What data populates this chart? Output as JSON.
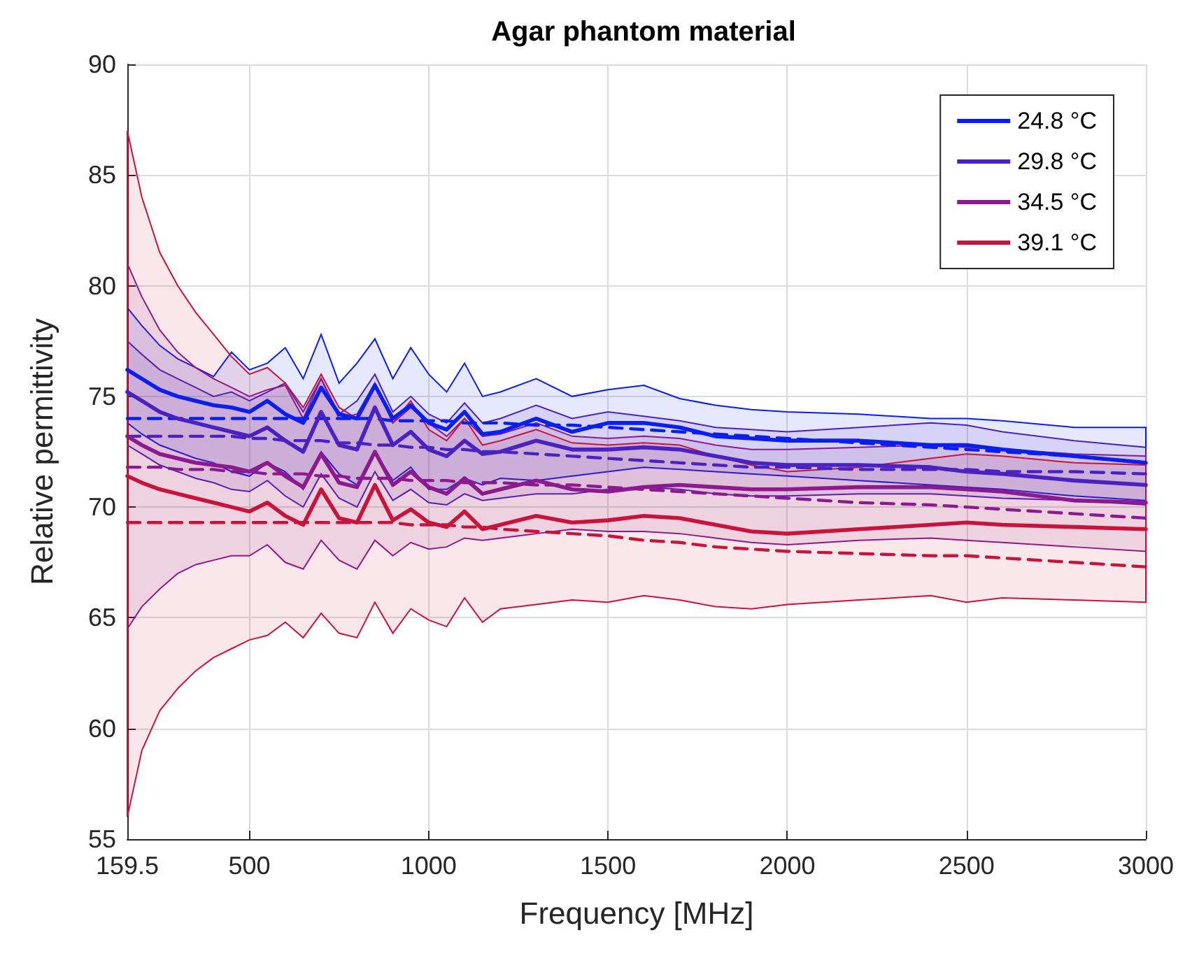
{
  "chart_data": {
    "type": "line",
    "title": "Agar phantom material",
    "xlabel": "Frequency [MHz]",
    "ylabel": "Relative permittivity",
    "x": [
      159.5,
      200,
      250,
      300,
      350,
      400,
      450,
      500,
      550,
      600,
      650,
      700,
      750,
      800,
      850,
      900,
      950,
      1000,
      1050,
      1100,
      1150,
      1200,
      1300,
      1400,
      1500,
      1600,
      1700,
      1800,
      1900,
      2000,
      2200,
      2400,
      2500,
      2600,
      2800,
      3000
    ],
    "xlim": [
      159.5,
      3000
    ],
    "xticks": [
      159.5,
      500,
      1000,
      1500,
      2000,
      2500,
      3000
    ],
    "ylim": [
      55,
      90
    ],
    "yticks": [
      55,
      60,
      65,
      70,
      75,
      80,
      85,
      90
    ],
    "grid": true,
    "legend": "top right",
    "line_style": "solid",
    "series": [
      {
        "name": "24.8 °C",
        "color": "#0a1eee",
        "values": [
          76.2,
          75.8,
          75.3,
          75,
          74.8,
          74.6,
          74.5,
          74.3,
          74.8,
          74.2,
          73.8,
          75.4,
          74.2,
          74,
          75.5,
          74,
          74.6,
          73.8,
          73.5,
          74.3,
          73.3,
          73.4,
          74,
          73.4,
          73.8,
          73.8,
          73.6,
          73.2,
          73.1,
          73,
          73,
          72.8,
          72.8,
          72.6,
          72.3,
          72
        ],
        "upper": [
          79,
          78.2,
          77.3,
          76.7,
          76.3,
          75.9,
          77,
          76.2,
          76.5,
          77.2,
          75.8,
          77.8,
          75.6,
          76.5,
          77.6,
          75.8,
          77.2,
          76,
          75.2,
          76.5,
          75,
          75.2,
          75.8,
          75,
          75.3,
          75.5,
          74.9,
          74.6,
          74.4,
          74.3,
          74.2,
          74,
          74,
          73.9,
          73.6,
          73.6
        ],
        "lower": [
          73.8,
          73.3,
          72.8,
          72.5,
          72.2,
          72,
          71.6,
          71.4,
          72,
          71.6,
          70.8,
          72.5,
          71.5,
          71,
          72.5,
          71.2,
          71.8,
          70.8,
          70.8,
          71.3,
          71,
          71.3,
          71.2,
          71.4,
          71.6,
          71.8,
          71.7,
          71.6,
          71.5,
          71.4,
          71.2,
          71,
          70.9,
          70.8,
          70.5,
          70.3
        ]
      },
      {
        "name": "29.8 °C",
        "color": "#4a22c0",
        "values": [
          75.2,
          74.8,
          74.3,
          74,
          73.8,
          73.6,
          73.4,
          73.2,
          73.6,
          73,
          72.5,
          74.3,
          72.8,
          72.6,
          74.5,
          72.8,
          73.4,
          72.6,
          72.3,
          73,
          72.4,
          72.5,
          73,
          72.6,
          72.6,
          72.7,
          72.6,
          72.3,
          72,
          71.9,
          71.9,
          71.8,
          71.6,
          71.5,
          71.2,
          71
        ],
        "upper": [
          77.5,
          76.9,
          76.2,
          75.8,
          75.4,
          75,
          75.2,
          74.8,
          75.2,
          75.6,
          74.3,
          75.8,
          74.2,
          74.8,
          76,
          74.3,
          75,
          74.2,
          73.8,
          74.7,
          73.8,
          74,
          74.6,
          74,
          74.3,
          74.1,
          73.9,
          73.6,
          73.5,
          73.4,
          73.6,
          73.8,
          73.7,
          73.4,
          73,
          72.7
        ],
        "lower": [
          72.8,
          72.4,
          71.9,
          71.6,
          71.3,
          71.1,
          70.8,
          70.7,
          71.2,
          70.5,
          70,
          71.5,
          70.4,
          70,
          71.6,
          70.3,
          70.8,
          70.2,
          70.1,
          70.6,
          70.3,
          70.4,
          70.6,
          70.6,
          70.8,
          70.9,
          70.8,
          70.6,
          70.5,
          70.5,
          70.6,
          70.6,
          70.5,
          70.4,
          70.3,
          70.1
        ]
      },
      {
        "name": "34.5 °C",
        "color": "#8a1a8e",
        "values": [
          73.2,
          72.8,
          72.4,
          72.2,
          72,
          71.9,
          71.8,
          71.6,
          72,
          71.4,
          70.9,
          72.4,
          71.1,
          70.9,
          72.5,
          71,
          71.6,
          70.9,
          70.6,
          71.3,
          70.6,
          70.8,
          71.2,
          70.8,
          70.7,
          70.9,
          71,
          70.9,
          70.8,
          70.8,
          70.9,
          70.9,
          70.8,
          70.7,
          70.3,
          70.2
        ],
        "upper": [
          81,
          79.5,
          78,
          77,
          76.3,
          75.8,
          75.4,
          75,
          75.3,
          75.5,
          74,
          75.8,
          74,
          74.2,
          75.6,
          73.8,
          74.5,
          73.8,
          73.2,
          74,
          73.2,
          73.3,
          73.8,
          73.2,
          73.1,
          73.2,
          73.1,
          72.8,
          72.6,
          72.6,
          72.7,
          72.8,
          72.7,
          72.6,
          72.4,
          72.3
        ],
        "lower": [
          64.5,
          65.5,
          66.3,
          67,
          67.4,
          67.6,
          67.8,
          67.8,
          68.3,
          67.5,
          67.2,
          68.5,
          67.6,
          67.2,
          68.5,
          67.8,
          68.4,
          68.1,
          68.2,
          68.6,
          68.5,
          68.6,
          68.8,
          69,
          68.9,
          68.9,
          68.8,
          68.6,
          68.4,
          68.3,
          68.5,
          68.6,
          68.5,
          68.4,
          68.2,
          68
        ]
      },
      {
        "name": "39.1 °C",
        "color": "#c8143c",
        "values": [
          71.4,
          71.1,
          70.8,
          70.6,
          70.4,
          70.2,
          70,
          69.8,
          70.2,
          69.6,
          69.2,
          70.8,
          69.5,
          69.3,
          71,
          69.4,
          69.9,
          69.3,
          69.1,
          69.8,
          69,
          69.2,
          69.6,
          69.3,
          69.4,
          69.6,
          69.5,
          69.2,
          68.9,
          68.8,
          69,
          69.2,
          69.3,
          69.2,
          69.1,
          69
        ],
        "upper": [
          87,
          84,
          81.5,
          80,
          78.8,
          77.8,
          76.8,
          76,
          76.3,
          75.6,
          74.5,
          76,
          74.5,
          74,
          75.6,
          73.8,
          74.8,
          73.5,
          73,
          74,
          72.8,
          73,
          73.5,
          72.9,
          72.8,
          72.9,
          72.8,
          72.3,
          71.9,
          71.6,
          71.8,
          72.2,
          72.4,
          72.3,
          72,
          71.9
        ],
        "lower": [
          56,
          59,
          60.8,
          61.8,
          62.6,
          63.2,
          63.6,
          64,
          64.2,
          64.8,
          64.1,
          65.2,
          64.3,
          64.1,
          65.7,
          64.3,
          65.4,
          64.9,
          64.6,
          65.9,
          64.8,
          65.4,
          65.6,
          65.8,
          65.7,
          66,
          65.8,
          65.5,
          65.4,
          65.6,
          65.8,
          66,
          65.7,
          65.9,
          65.8,
          65.7
        ]
      },
      {
        "color": "#0a1eee",
        "line_style": "dashed",
        "values": [
          74,
          74,
          74,
          74,
          74,
          74,
          74,
          74,
          74,
          74,
          74,
          74,
          74,
          74,
          74,
          73.9,
          73.9,
          73.9,
          73.9,
          73.8,
          73.8,
          73.8,
          73.7,
          73.7,
          73.6,
          73.5,
          73.4,
          73.3,
          73.2,
          73.1,
          72.9,
          72.7,
          72.6,
          72.5,
          72.3,
          72
        ]
      },
      {
        "color": "#4a22c0",
        "line_style": "dashed",
        "values": [
          73.2,
          73.2,
          73.2,
          73.2,
          73.2,
          73.2,
          73.2,
          73.1,
          73.1,
          73,
          73,
          73,
          72.9,
          72.9,
          72.8,
          72.8,
          72.7,
          72.7,
          72.6,
          72.6,
          72.5,
          72.5,
          72.4,
          72.3,
          72.2,
          72.1,
          72,
          71.9,
          71.8,
          71.8,
          71.7,
          71.7,
          71.7,
          71.6,
          71.6,
          71.5
        ]
      },
      {
        "color": "#8a1a8e",
        "line_style": "dashed",
        "values": [
          71.8,
          71.8,
          71.8,
          71.7,
          71.7,
          71.7,
          71.6,
          71.6,
          71.5,
          71.5,
          71.5,
          71.4,
          71.4,
          71.3,
          71.3,
          71.3,
          71.2,
          71.2,
          71.2,
          71.1,
          71.1,
          71.1,
          71,
          71,
          70.9,
          70.8,
          70.7,
          70.6,
          70.5,
          70.4,
          70.2,
          70.1,
          70,
          69.9,
          69.7,
          69.5
        ]
      },
      {
        "color": "#c8143c",
        "line_style": "dashed",
        "values": [
          69.3,
          69.3,
          69.3,
          69.3,
          69.3,
          69.3,
          69.3,
          69.3,
          69.3,
          69.3,
          69.3,
          69.3,
          69.3,
          69.3,
          69.3,
          69.3,
          69.2,
          69.2,
          69.2,
          69.1,
          69.1,
          69,
          68.9,
          68.8,
          68.7,
          68.5,
          68.4,
          68.2,
          68.1,
          68,
          67.9,
          67.8,
          67.8,
          67.7,
          67.5,
          67.3
        ]
      }
    ]
  }
}
